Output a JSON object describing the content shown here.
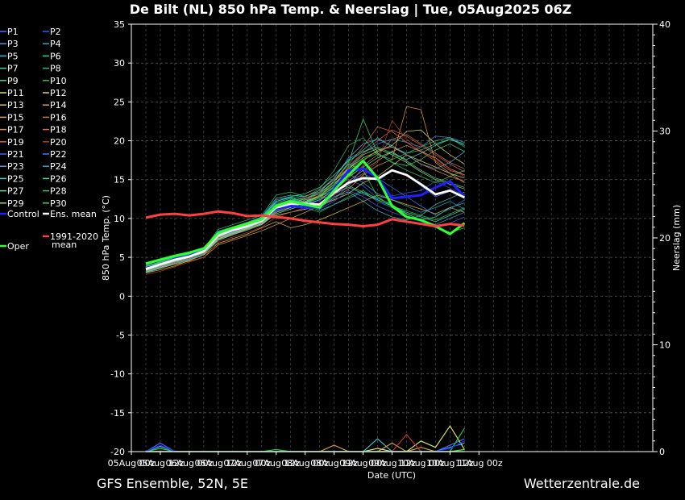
{
  "chart_data": {
    "type": "line",
    "title": "De Bilt  (NL)  850 hPa Temp. & Neerslag | Tue, 05Aug2025 06Z",
    "xlabel": "Date (UTC)",
    "ylabel": "850 hPa Temp. (°C)",
    "y2label": "Neerslag (mm)",
    "ylim": [
      -20,
      35
    ],
    "yticks": [
      35,
      30,
      25,
      20,
      15,
      10,
      5,
      0,
      -5,
      -10,
      -15,
      -20
    ],
    "y2lim": [
      0,
      40
    ],
    "y2ticks": [
      40,
      30,
      20,
      10,
      0
    ],
    "x_range": [
      0,
      36
    ],
    "x_start": 1,
    "x_step_hours": 6,
    "grid": true,
    "xticks": [
      {
        "h": 0,
        "label": "05Aug 00z"
      },
      {
        "h": 12,
        "label": "05Aug 12z"
      },
      {
        "h": 24,
        "label": "06Aug 00z"
      },
      {
        "h": 36,
        "label": "06Aug 12z"
      },
      {
        "h": 48,
        "label": "07Aug 00z"
      },
      {
        "h": 60,
        "label": "07Aug 12z"
      },
      {
        "h": 72,
        "label": "08Aug 00z"
      },
      {
        "h": 84,
        "label": "08Aug 12z"
      },
      {
        "h": 96,
        "label": "09Aug 00z"
      },
      {
        "h": 108,
        "label": "09Aug 12z"
      },
      {
        "h": 120,
        "label": "10Aug 00z"
      },
      {
        "h": 132,
        "label": "10Aug 12z"
      },
      {
        "h": 144,
        "label": "11Aug 00z"
      }
    ],
    "legend": [
      {
        "label": "P1",
        "color": "#4f6bff"
      },
      {
        "label": "P2",
        "color": "#2a5cff"
      },
      {
        "label": "P3",
        "color": "#4c8fe0"
      },
      {
        "label": "P4",
        "color": "#2aa7c9"
      },
      {
        "label": "P5",
        "color": "#3fb9c4"
      },
      {
        "label": "P6",
        "color": "#33d0b0"
      },
      {
        "label": "P7",
        "color": "#3fd48c"
      },
      {
        "label": "P8",
        "color": "#2fbf6e"
      },
      {
        "label": "P9",
        "color": "#33e07a"
      },
      {
        "label": "P10",
        "color": "#22c93e"
      },
      {
        "label": "P11",
        "color": "#d9e06a"
      },
      {
        "label": "P12",
        "color": "#e6d26a"
      },
      {
        "label": "P13",
        "color": "#e0c040"
      },
      {
        "label": "P14",
        "color": "#e0a030"
      },
      {
        "label": "P15",
        "color": "#d8a070"
      },
      {
        "label": "P16",
        "color": "#b88050"
      },
      {
        "label": "P17",
        "color": "#e08a50"
      },
      {
        "label": "P18",
        "color": "#e06a40"
      },
      {
        "label": "P19",
        "color": "#e05a50"
      },
      {
        "label": "P20",
        "color": "#b83a30"
      },
      {
        "label": "P21",
        "color": "#4a5aff"
      },
      {
        "label": "P22",
        "color": "#3a7aff"
      },
      {
        "label": "P23",
        "color": "#6a9ad8"
      },
      {
        "label": "P24",
        "color": "#3aa0d0"
      },
      {
        "label": "P25",
        "color": "#4ad0d0"
      },
      {
        "label": "P26",
        "color": "#3ae0b0"
      },
      {
        "label": "P27",
        "color": "#6ae0a0"
      },
      {
        "label": "P28",
        "color": "#2ad070"
      },
      {
        "label": "P29",
        "color": "#8ae070"
      },
      {
        "label": "P30",
        "color": "#2ae040"
      }
    ],
    "legend_special": [
      {
        "label": "Control",
        "color": "#2020ff"
      },
      {
        "label": "Ens. mean",
        "color": "#ffffff"
      },
      {
        "label": "1991-2020",
        "label2": "mean",
        "color": "#ff4040"
      },
      {
        "label": "Oper",
        "color": "#30ff30"
      }
    ],
    "members_temp": [
      [
        3.5,
        4.2,
        4.6,
        5.1,
        5.8,
        7.8,
        8.6,
        9.0,
        9.6,
        11.2,
        11.6,
        12.2,
        11.8,
        13.2,
        14.6,
        15.8,
        14.8,
        16.2,
        15.6,
        14.2,
        12.8,
        13.5,
        12.6
      ],
      [
        3.2,
        3.8,
        4.4,
        4.9,
        5.5,
        7.6,
        8.3,
        8.9,
        9.4,
        11.6,
        12.0,
        11.9,
        12.2,
        14.1,
        15.0,
        14.2,
        12.6,
        12.9,
        13.3,
        13.6,
        14.8,
        13.9,
        12.9
      ],
      [
        3.8,
        4.5,
        5.0,
        5.4,
        6.2,
        8.4,
        8.9,
        9.5,
        10.0,
        12.4,
        12.8,
        12.0,
        11.2,
        13.2,
        16.8,
        18.4,
        19.6,
        20.2,
        19.8,
        19.2,
        20.6,
        20.4,
        19.8
      ],
      [
        3.0,
        3.6,
        4.2,
        4.6,
        5.4,
        7.4,
        8.1,
        8.8,
        9.6,
        12.0,
        12.6,
        12.9,
        13.4,
        14.6,
        15.8,
        14.6,
        13.2,
        12.4,
        11.6,
        10.8,
        11.4,
        12.2,
        11.2
      ],
      [
        3.6,
        4.1,
        4.8,
        5.2,
        5.9,
        7.9,
        8.6,
        9.1,
        9.8,
        11.4,
        12.2,
        12.5,
        11.6,
        12.8,
        13.4,
        12.2,
        11.0,
        10.2,
        9.8,
        10.4,
        11.8,
        12.6,
        13.4
      ],
      [
        4.2,
        4.7,
        5.3,
        5.7,
        6.3,
        8.2,
        8.8,
        9.4,
        10.2,
        12.6,
        13.0,
        12.8,
        13.6,
        15.2,
        17.6,
        18.8,
        20.4,
        19.2,
        18.4,
        18.8,
        19.6,
        20.2,
        19.4
      ],
      [
        3.3,
        3.9,
        4.5,
        5.0,
        5.7,
        7.5,
        8.2,
        8.9,
        9.5,
        10.8,
        11.4,
        12.4,
        12.8,
        13.6,
        14.2,
        13.4,
        12.6,
        11.8,
        10.6,
        9.8,
        10.2,
        11.4,
        12.0
      ],
      [
        3.9,
        4.4,
        5.1,
        5.5,
        6.1,
        8.6,
        9.2,
        9.8,
        10.4,
        13.0,
        13.4,
        12.8,
        13.8,
        16.2,
        19.4,
        20.4,
        18.2,
        17.6,
        18.4,
        19.2,
        20.0,
        20.4,
        19.2
      ],
      [
        3.4,
        4.0,
        4.7,
        5.3,
        6.0,
        8.0,
        8.7,
        9.3,
        9.9,
        12.2,
        12.7,
        12.1,
        12.9,
        14.8,
        17.2,
        22.8,
        18.4,
        17.2,
        16.8,
        17.6,
        18.8,
        19.6,
        18.6
      ],
      [
        3.7,
        4.3,
        4.9,
        5.4,
        6.2,
        8.1,
        8.5,
        9.2,
        9.7,
        11.8,
        12.3,
        11.4,
        10.8,
        11.8,
        12.8,
        13.6,
        12.4,
        11.6,
        11.0,
        10.4,
        9.8,
        10.6,
        11.4
      ],
      [
        3.1,
        3.7,
        4.3,
        4.8,
        5.6,
        7.2,
        7.9,
        8.6,
        9.4,
        11.2,
        11.7,
        12.6,
        13.2,
        14.8,
        16.4,
        17.8,
        18.6,
        19.4,
        21.2,
        21.4,
        19.6,
        18.2,
        17.0
      ],
      [
        3.5,
        4.0,
        4.6,
        5.1,
        5.8,
        7.7,
        8.4,
        8.8,
        9.6,
        10.4,
        10.8,
        11.2,
        11.6,
        12.4,
        13.2,
        14.6,
        15.4,
        16.8,
        18.2,
        17.4,
        16.6,
        15.8,
        15.2
      ],
      [
        3.0,
        3.4,
        3.9,
        4.6,
        5.3,
        6.8,
        7.4,
        8.0,
        8.8,
        9.6,
        8.8,
        9.2,
        9.8,
        10.6,
        11.4,
        12.2,
        13.0,
        12.4,
        11.8,
        11.2,
        10.6,
        11.4,
        10.8
      ],
      [
        3.2,
        3.6,
        4.1,
        4.5,
        5.0,
        6.6,
        7.2,
        7.8,
        8.4,
        9.2,
        10.0,
        10.8,
        11.6,
        12.6,
        13.8,
        15.6,
        16.8,
        17.6,
        24.4,
        24.0,
        17.2,
        15.8,
        14.6
      ],
      [
        3.8,
        4.3,
        4.9,
        5.3,
        5.9,
        7.9,
        8.5,
        9.1,
        9.8,
        11.0,
        11.5,
        12.0,
        12.6,
        13.4,
        14.8,
        16.2,
        17.4,
        18.6,
        19.4,
        18.6,
        17.8,
        16.4,
        15.6
      ],
      [
        3.6,
        4.2,
        4.7,
        5.2,
        5.8,
        7.4,
        8.0,
        8.7,
        9.3,
        10.6,
        11.2,
        11.8,
        12.4,
        13.6,
        15.2,
        16.8,
        18.2,
        20.2,
        20.8,
        19.6,
        18.4,
        17.2,
        16.4
      ],
      [
        3.4,
        3.9,
        4.4,
        5.0,
        5.7,
        7.3,
        8.0,
        8.6,
        9.2,
        10.8,
        11.4,
        12.2,
        13.0,
        14.4,
        16.0,
        17.4,
        18.8,
        19.2,
        18.2,
        17.0,
        16.2,
        15.4,
        14.8
      ],
      [
        3.7,
        4.2,
        4.8,
        5.3,
        5.9,
        7.8,
        8.4,
        9.0,
        9.7,
        11.6,
        12.2,
        12.8,
        13.6,
        15.0,
        17.0,
        19.2,
        21.8,
        21.2,
        19.8,
        18.6,
        17.4,
        16.2,
        15.6
      ],
      [
        3.3,
        3.8,
        4.3,
        4.9,
        5.5,
        7.5,
        8.2,
        8.8,
        9.4,
        11.0,
        11.6,
        12.4,
        13.2,
        14.8,
        16.6,
        18.4,
        20.0,
        21.4,
        20.6,
        19.4,
        18.2,
        17.0,
        16.0
      ],
      [
        2.8,
        3.2,
        3.8,
        4.4,
        5.0,
        7.0,
        7.6,
        8.2,
        8.9,
        10.2,
        10.8,
        11.4,
        12.0,
        13.0,
        14.2,
        15.8,
        17.2,
        22.6,
        20.2,
        18.8,
        17.6,
        16.4,
        15.4
      ],
      [
        3.5,
        4.1,
        4.6,
        5.1,
        5.8,
        7.7,
        8.3,
        8.9,
        9.5,
        11.4,
        12.0,
        11.6,
        11.2,
        12.2,
        13.6,
        12.8,
        11.6,
        10.8,
        10.2,
        9.6,
        8.8,
        9.4,
        10.2
      ],
      [
        3.6,
        4.2,
        4.8,
        5.2,
        5.9,
        7.8,
        8.5,
        9.1,
        9.7,
        11.8,
        12.4,
        12.0,
        11.4,
        12.6,
        14.2,
        16.6,
        15.2,
        14.0,
        12.8,
        11.6,
        10.4,
        11.2,
        12.4
      ],
      [
        3.2,
        3.8,
        4.4,
        4.8,
        5.6,
        7.4,
        8.1,
        8.7,
        9.3,
        11.2,
        11.8,
        12.6,
        13.4,
        15.2,
        17.8,
        19.6,
        20.2,
        19.4,
        18.2,
        17.0,
        16.4,
        17.2,
        18.6
      ],
      [
        3.9,
        4.4,
        5.0,
        5.5,
        6.1,
        8.2,
        8.8,
        9.4,
        10.1,
        12.0,
        12.6,
        11.8,
        11.0,
        11.8,
        12.6,
        13.4,
        12.2,
        11.4,
        10.6,
        9.8,
        9.2,
        10.0,
        10.8
      ],
      [
        3.1,
        3.6,
        4.2,
        4.7,
        5.4,
        7.2,
        7.9,
        8.5,
        9.2,
        10.6,
        11.2,
        11.8,
        12.4,
        13.2,
        14.0,
        13.2,
        12.4,
        11.6,
        10.8,
        10.2,
        9.6,
        10.4,
        11.2
      ],
      [
        4.0,
        4.6,
        5.2,
        5.6,
        6.2,
        8.3,
        8.9,
        9.5,
        10.2,
        12.2,
        12.8,
        13.2,
        14.0,
        15.6,
        17.4,
        18.6,
        19.2,
        18.4,
        17.6,
        18.4,
        19.4,
        20.2,
        19.6
      ],
      [
        3.4,
        4.0,
        4.5,
        5.0,
        5.7,
        7.6,
        8.2,
        8.8,
        9.5,
        11.0,
        11.6,
        12.2,
        12.8,
        14.0,
        15.4,
        16.6,
        17.8,
        18.6,
        17.4,
        16.2,
        15.2,
        14.6,
        14.0
      ],
      [
        3.7,
        4.3,
        4.9,
        5.3,
        6.0,
        8.0,
        8.6,
        9.2,
        9.9,
        11.8,
        12.4,
        12.0,
        12.6,
        14.2,
        16.2,
        17.6,
        18.4,
        17.2,
        16.2,
        15.4,
        14.6,
        15.4,
        16.2
      ],
      [
        3.3,
        3.9,
        4.5,
        5.0,
        5.6,
        7.4,
        8.1,
        8.7,
        9.3,
        10.8,
        11.4,
        12.0,
        12.8,
        14.4,
        16.4,
        18.2,
        19.0,
        18.2,
        17.2,
        16.0,
        15.0,
        14.4,
        13.8
      ],
      [
        3.8,
        4.4,
        5.0,
        5.4,
        6.1,
        8.2,
        8.8,
        9.4,
        10.0,
        11.8,
        12.4,
        12.6,
        13.2,
        14.8,
        17.0,
        16.2,
        12.8,
        11.6,
        10.6,
        9.8,
        9.0,
        8.2,
        8.8
      ]
    ],
    "series": [
      {
        "name": "Control",
        "color": "#2020ff",
        "width": 3,
        "values": [
          3.6,
          4.1,
          4.8,
          5.2,
          5.9,
          7.9,
          8.6,
          9.1,
          9.8,
          11.2,
          11.6,
          11.4,
          11.4,
          13.8,
          16.2,
          16.4,
          15.2,
          12.6,
          12.8,
          13.0,
          14.0,
          14.8,
          12.8
        ]
      },
      {
        "name": "Ens. mean",
        "color": "#ffffff",
        "width": 2.8,
        "values": [
          3.5,
          4.1,
          4.7,
          5.1,
          5.8,
          7.8,
          8.5,
          9.0,
          9.7,
          11.4,
          11.9,
          11.9,
          11.8,
          13.3,
          14.6,
          15.2,
          15.1,
          16.2,
          15.6,
          14.4,
          13.1,
          13.6,
          12.7
        ]
      },
      {
        "name": "Oper",
        "color": "#30ff30",
        "width": 3,
        "values": [
          4.2,
          4.7,
          5.2,
          5.6,
          6.1,
          8.1,
          8.8,
          9.3,
          9.9,
          11.6,
          12.2,
          11.8,
          11.4,
          13.6,
          15.6,
          17.4,
          15.2,
          11.6,
          10.2,
          9.8,
          9.0,
          8.0,
          9.4
        ]
      },
      {
        "name": "1991-2020 mean",
        "color": "#ff4040",
        "width": 3,
        "values": [
          10.1,
          10.5,
          10.6,
          10.4,
          10.6,
          10.9,
          10.7,
          10.3,
          10.4,
          10.2,
          10.0,
          9.7,
          9.5,
          9.3,
          9.2,
          9.0,
          9.2,
          9.9,
          9.6,
          9.3,
          9.0,
          9.3,
          9.1
        ]
      }
    ],
    "precip": [
      {
        "color": "#4f6bff",
        "values": [
          0,
          0.8,
          0,
          0,
          0,
          0,
          0,
          0,
          0,
          0,
          0,
          0,
          0,
          0,
          0,
          0,
          0,
          0,
          0,
          0,
          0,
          0.6,
          1.2
        ]
      },
      {
        "color": "#3fb9c4",
        "values": [
          0,
          0.5,
          0,
          0,
          0,
          0,
          0,
          0,
          0,
          0,
          0,
          0,
          0,
          0,
          0,
          0,
          1.2,
          0,
          0,
          0,
          0,
          0.4,
          0.8
        ]
      },
      {
        "color": "#e0a030",
        "values": [
          0,
          0,
          0,
          0,
          0,
          0,
          0,
          0,
          0,
          0,
          0,
          0,
          0,
          0.6,
          0,
          0,
          0,
          0.8,
          0,
          0.4,
          0,
          0,
          0
        ]
      },
      {
        "color": "#d9e06a",
        "values": [
          0,
          0,
          0,
          0,
          0,
          0,
          0,
          0,
          0,
          0,
          0,
          0,
          0,
          0,
          0,
          0,
          0.3,
          0,
          0,
          1.0,
          0.4,
          2.4,
          0.2
        ]
      },
      {
        "color": "#b83a30",
        "values": [
          0,
          0,
          0,
          0,
          0,
          0,
          0,
          0,
          0,
          0,
          0,
          0,
          0,
          0,
          0,
          0,
          0,
          0,
          1.6,
          0,
          0,
          0,
          0
        ]
      },
      {
        "color": "#22c93e",
        "values": [
          0,
          0.3,
          0,
          0,
          0,
          0,
          0,
          0,
          0,
          0.2,
          0,
          0,
          0,
          0,
          0,
          0,
          0,
          0,
          0,
          0,
          0,
          0,
          2.2
        ]
      },
      {
        "color": "#2020ff",
        "values": [
          0,
          0.6,
          0,
          0,
          0,
          0,
          0,
          0,
          0,
          0,
          0,
          0,
          0,
          0,
          0,
          0,
          0,
          0,
          0,
          0,
          0,
          0.3,
          1.0
        ]
      },
      {
        "color": "#30ff30",
        "values": [
          0,
          0,
          0,
          0,
          0,
          0,
          0,
          0,
          0,
          0,
          0,
          0,
          0,
          0,
          0,
          0,
          0,
          0,
          0,
          0,
          0,
          0,
          0.2
        ]
      }
    ]
  },
  "footer": {
    "left": "GFS Ensemble, 52N, 5E",
    "right": "Wetterzentrale.de"
  }
}
